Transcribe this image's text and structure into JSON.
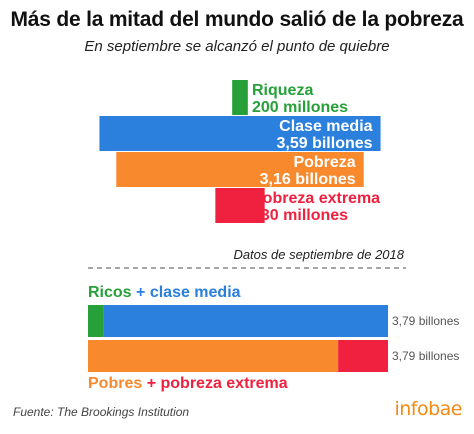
{
  "header": {
    "title": "Más de la mitad del mundo salió de la pobreza",
    "subtitle": "En septiembre se alcanzó el punto de quiebre"
  },
  "colors": {
    "green": "#27a03a",
    "blue": "#2b7fdd",
    "orange": "#f8892c",
    "red": "#f0213f",
    "gray_text": "#555555",
    "divider": "#888888"
  },
  "chart_data": [
    {
      "type": "bar",
      "orientation": "horizontal-centered",
      "categories": [
        "Riqueza",
        "Clase media",
        "Pobreza",
        "Pobreza extrema"
      ],
      "values": [
        0.2,
        3.59,
        3.16,
        0.63
      ],
      "value_labels": [
        "200 millones",
        "3,59 billones",
        "3,16 billones",
        "630 millones"
      ],
      "colors": [
        "#27a03a",
        "#2b7fdd",
        "#f8892c",
        "#f0213f"
      ]
    },
    {
      "type": "bar",
      "orientation": "horizontal-stacked",
      "title": "Datos de septiembre de 2018",
      "groups": [
        {
          "label_parts": [
            "Ricos",
            "+",
            "clase media"
          ],
          "segments": [
            {
              "category": "Riqueza",
              "value": 0.2,
              "color": "#27a03a"
            },
            {
              "category": "Clase media",
              "value": 3.59,
              "color": "#2b7fdd"
            }
          ],
          "total_label": "3,79 billones"
        },
        {
          "label_parts": [
            "Pobres",
            "+",
            "pobreza extrema"
          ],
          "segments": [
            {
              "category": "Pobreza",
              "value": 3.16,
              "color": "#f8892c"
            },
            {
              "category": "Pobreza extrema",
              "value": 0.63,
              "color": "#f0213f"
            }
          ],
          "total_label": "3,79 billones"
        }
      ]
    }
  ],
  "footer": {
    "source": "Fuente: The Brookings Institution",
    "brand": "infobae"
  }
}
